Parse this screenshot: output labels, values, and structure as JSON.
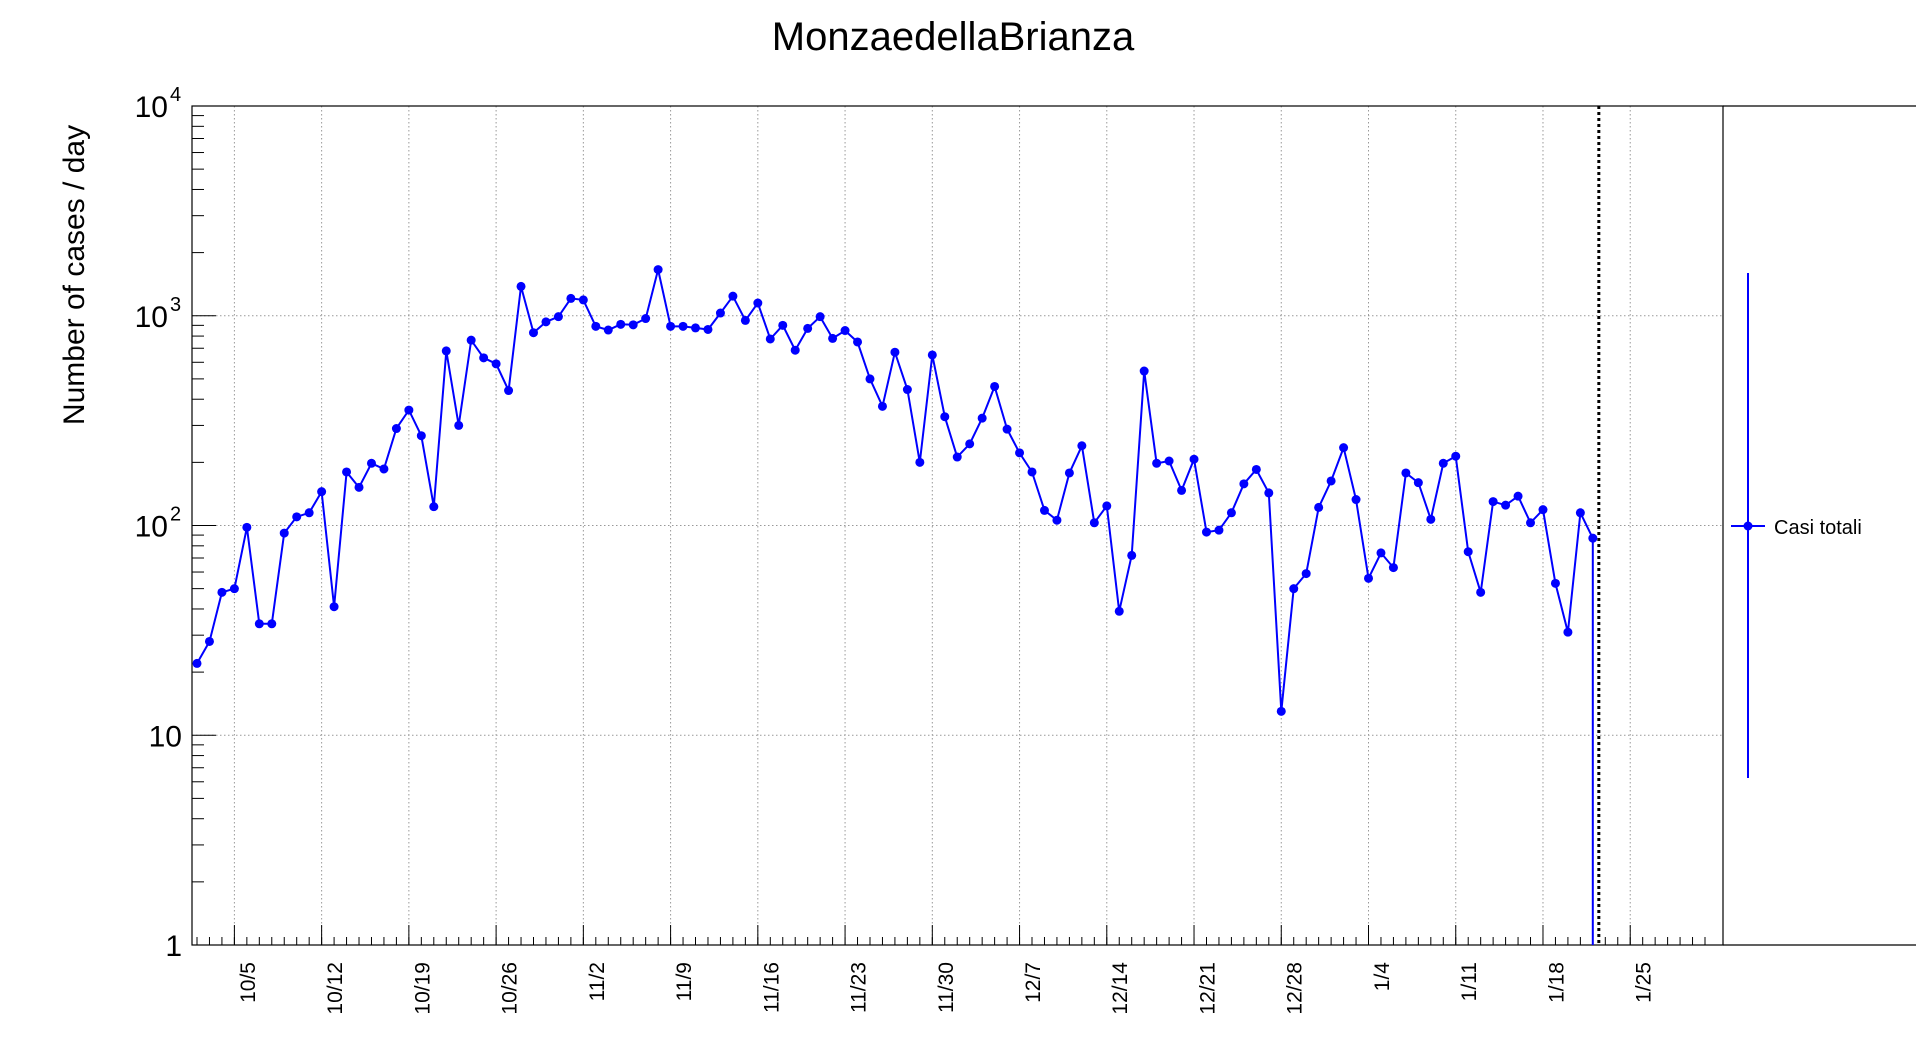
{
  "chart_data": {
    "type": "line",
    "title": "MonzaedellaBrianza",
    "xlabel": "",
    "ylabel": "Number of cases / day",
    "yscale": "log",
    "ylim": [
      1,
      10000
    ],
    "grid": true,
    "y_ticks": [
      {
        "base": "1",
        "exp": ""
      },
      {
        "base": "10",
        "exp": ""
      },
      {
        "base": "10",
        "exp": "2"
      },
      {
        "base": "10",
        "exp": "3"
      },
      {
        "base": "10",
        "exp": "4"
      }
    ],
    "x_tick_labels": [
      "10/5",
      "10/12",
      "10/19",
      "10/26",
      "11/2",
      "11/9",
      "11/16",
      "11/23",
      "11/30",
      "12/7",
      "12/14",
      "12/21",
      "12/28",
      "1/4",
      "1/11",
      "1/18",
      "1/25"
    ],
    "x_start": "2020-10-01",
    "x_end": "2021-01-30",
    "current_date_marker": "2021-01-21",
    "legend": {
      "position": "right",
      "entries": [
        "Casi totali"
      ]
    },
    "series": [
      {
        "name": "Casi totali",
        "color": "#0000ff",
        "points": [
          [
            "2020-10-01",
            22
          ],
          [
            "2020-10-02",
            28
          ],
          [
            "2020-10-03",
            48
          ],
          [
            "2020-10-04",
            50
          ],
          [
            "2020-10-05",
            98
          ],
          [
            "2020-10-06",
            34
          ],
          [
            "2020-10-07",
            34
          ],
          [
            "2020-10-08",
            92
          ],
          [
            "2020-10-09",
            110
          ],
          [
            "2020-10-10",
            115
          ],
          [
            "2020-10-11",
            145
          ],
          [
            "2020-10-12",
            41
          ],
          [
            "2020-10-13",
            180
          ],
          [
            "2020-10-14",
            152
          ],
          [
            "2020-10-15",
            198
          ],
          [
            "2020-10-16",
            186
          ],
          [
            "2020-10-17",
            290
          ],
          [
            "2020-10-18",
            355
          ],
          [
            "2020-10-19",
            268
          ],
          [
            "2020-10-20",
            123
          ],
          [
            "2020-10-21",
            680
          ],
          [
            "2020-10-22",
            300
          ],
          [
            "2020-10-23",
            765
          ],
          [
            "2020-10-24",
            630
          ],
          [
            "2020-10-25",
            590
          ],
          [
            "2020-10-26",
            440
          ],
          [
            "2020-10-27",
            1380
          ],
          [
            "2020-10-28",
            830
          ],
          [
            "2020-10-29",
            935
          ],
          [
            "2020-10-30",
            990
          ],
          [
            "2020-10-31",
            1210
          ],
          [
            "2020-11-01",
            1190
          ],
          [
            "2020-11-02",
            890
          ],
          [
            "2020-11-03",
            855
          ],
          [
            "2020-11-04",
            910
          ],
          [
            "2020-11-05",
            905
          ],
          [
            "2020-11-06",
            970
          ],
          [
            "2020-11-07",
            1660
          ],
          [
            "2020-11-08",
            890
          ],
          [
            "2020-11-09",
            890
          ],
          [
            "2020-11-10",
            875
          ],
          [
            "2020-11-11",
            860
          ],
          [
            "2020-11-12",
            1030
          ],
          [
            "2020-11-13",
            1240
          ],
          [
            "2020-11-14",
            950
          ],
          [
            "2020-11-15",
            1150
          ],
          [
            "2020-11-16",
            775
          ],
          [
            "2020-11-17",
            900
          ],
          [
            "2020-11-18",
            685
          ],
          [
            "2020-11-19",
            870
          ],
          [
            "2020-11-20",
            990
          ],
          [
            "2020-11-21",
            780
          ],
          [
            "2020-11-22",
            850
          ],
          [
            "2020-11-23",
            750
          ],
          [
            "2020-11-24",
            500
          ],
          [
            "2020-11-25",
            370
          ],
          [
            "2020-11-26",
            670
          ],
          [
            "2020-11-27",
            445
          ],
          [
            "2020-11-28",
            200
          ],
          [
            "2020-11-29",
            650
          ],
          [
            "2020-11-30",
            330
          ],
          [
            "2020-12-01",
            212
          ],
          [
            "2020-12-02",
            245
          ],
          [
            "2020-12-03",
            325
          ],
          [
            "2020-12-04",
            460
          ],
          [
            "2020-12-05",
            288
          ],
          [
            "2020-12-06",
            222
          ],
          [
            "2020-12-07",
            180
          ],
          [
            "2020-12-08",
            118
          ],
          [
            "2020-12-09",
            106
          ],
          [
            "2020-12-10",
            178
          ],
          [
            "2020-12-11",
            240
          ],
          [
            "2020-12-12",
            103
          ],
          [
            "2020-12-13",
            124
          ],
          [
            "2020-12-14",
            39
          ],
          [
            "2020-12-15",
            72
          ],
          [
            "2020-12-16",
            545
          ],
          [
            "2020-12-17",
            198
          ],
          [
            "2020-12-18",
            203
          ],
          [
            "2020-12-19",
            147
          ],
          [
            "2020-12-20",
            207
          ],
          [
            "2020-12-21",
            93
          ],
          [
            "2020-12-22",
            95
          ],
          [
            "2020-12-23",
            115
          ],
          [
            "2020-12-24",
            158
          ],
          [
            "2020-12-25",
            185
          ],
          [
            "2020-12-26",
            143
          ],
          [
            "2020-12-27",
            13
          ],
          [
            "2020-12-28",
            50
          ],
          [
            "2020-12-29",
            59
          ],
          [
            "2020-12-30",
            122
          ],
          [
            "2020-12-31",
            163
          ],
          [
            "2021-01-01",
            235
          ],
          [
            "2021-01-02",
            133
          ],
          [
            "2021-01-03",
            56
          ],
          [
            "2021-01-04",
            74
          ],
          [
            "2021-01-05",
            63
          ],
          [
            "2021-01-06",
            178
          ],
          [
            "2021-01-07",
            160
          ],
          [
            "2021-01-08",
            107
          ],
          [
            "2021-01-09",
            198
          ],
          [
            "2021-01-10",
            214
          ],
          [
            "2021-01-11",
            75
          ],
          [
            "2021-01-12",
            48
          ],
          [
            "2021-01-13",
            130
          ],
          [
            "2021-01-14",
            125
          ],
          [
            "2021-01-15",
            138
          ],
          [
            "2021-01-16",
            103
          ],
          [
            "2021-01-17",
            119
          ],
          [
            "2021-01-18",
            53
          ],
          [
            "2021-01-19",
            31
          ],
          [
            "2021-01-20",
            115
          ],
          [
            "2021-01-21",
            87
          ],
          [
            "2021-01-21",
            1
          ]
        ]
      }
    ]
  }
}
